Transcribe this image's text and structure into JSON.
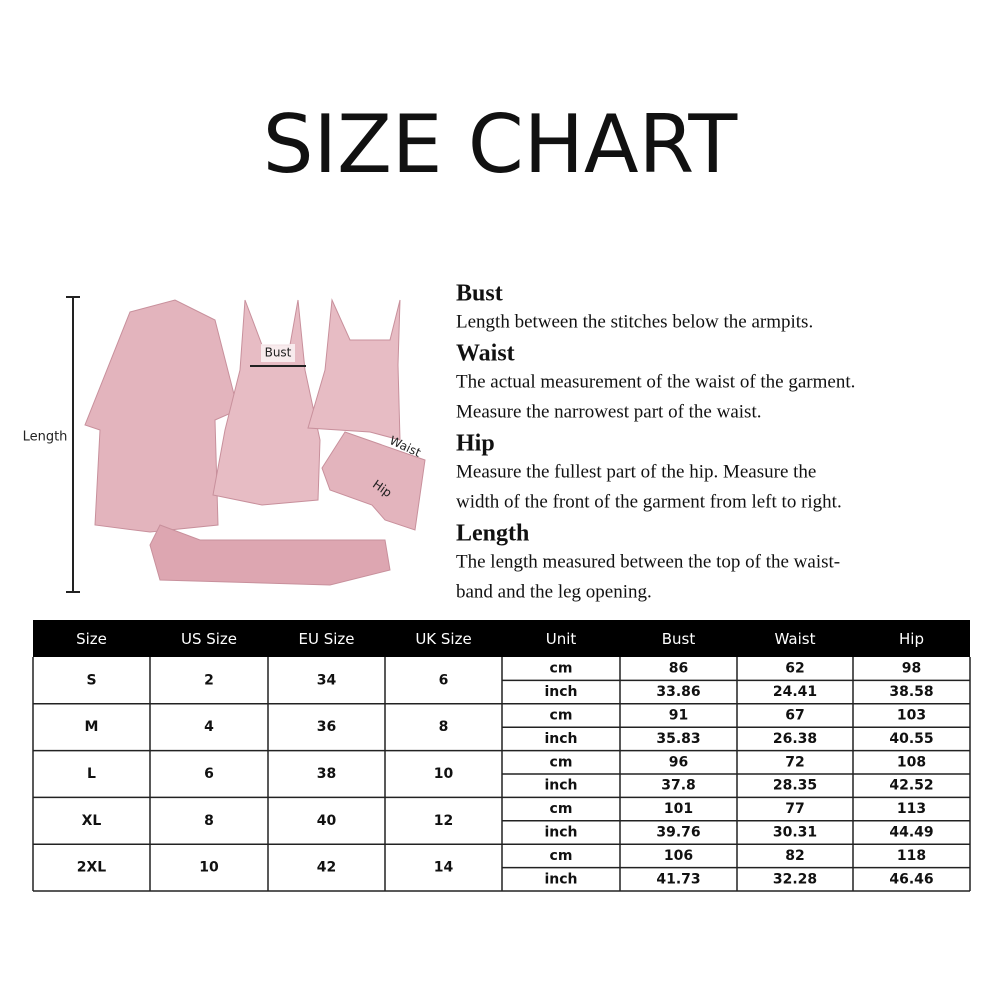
{
  "title": "SIZE CHART",
  "figure": {
    "length_label": "Length",
    "bust_label": "Bust",
    "waist_label": "Waist",
    "hip_label": "Hip"
  },
  "definitions": [
    {
      "term": "Bust",
      "lines": [
        "Length between the stitches below the armpits."
      ]
    },
    {
      "term": "Waist",
      "lines": [
        "The actual measurement of the waist of the garment.",
        "Measure the narrowest part of the waist."
      ]
    },
    {
      "term": "Hip",
      "lines": [
        "Measure the fullest part of the  hip. Measure the",
        "width of the front of the garment from left to right."
      ]
    },
    {
      "term": "Length",
      "lines": [
        "The length measured between the top of the waist-",
        "band and the leg opening."
      ]
    }
  ],
  "table": {
    "headers": [
      "Size",
      "US Size",
      "EU Size",
      "UK Size",
      "Unit",
      "Bust",
      "Waist",
      "Hip"
    ],
    "rows": [
      {
        "size": "S",
        "us": 2,
        "eu": 34,
        "uk": 6,
        "measures": [
          [
            "cm",
            86,
            62,
            98
          ],
          [
            "inch",
            33.86,
            24.41,
            38.58
          ]
        ]
      },
      {
        "size": "M",
        "us": 4,
        "eu": 36,
        "uk": 8,
        "measures": [
          [
            "cm",
            91,
            67,
            103
          ],
          [
            "inch",
            35.83,
            26.38,
            40.55
          ]
        ]
      },
      {
        "size": "L",
        "us": 6,
        "eu": 38,
        "uk": 10,
        "measures": [
          [
            "cm",
            96,
            72,
            108
          ],
          [
            "inch",
            37.8,
            28.35,
            42.52
          ]
        ]
      },
      {
        "size": "XL",
        "us": 8,
        "eu": 40,
        "uk": 12,
        "measures": [
          [
            "cm",
            101,
            77,
            113
          ],
          [
            "inch",
            39.76,
            30.31,
            44.49
          ]
        ]
      },
      {
        "size": "2XL",
        "us": 10,
        "eu": 42,
        "uk": 14,
        "measures": [
          [
            "cm",
            106,
            82,
            118
          ],
          [
            "inch",
            41.73,
            32.28,
            46.46
          ]
        ]
      }
    ]
  }
}
